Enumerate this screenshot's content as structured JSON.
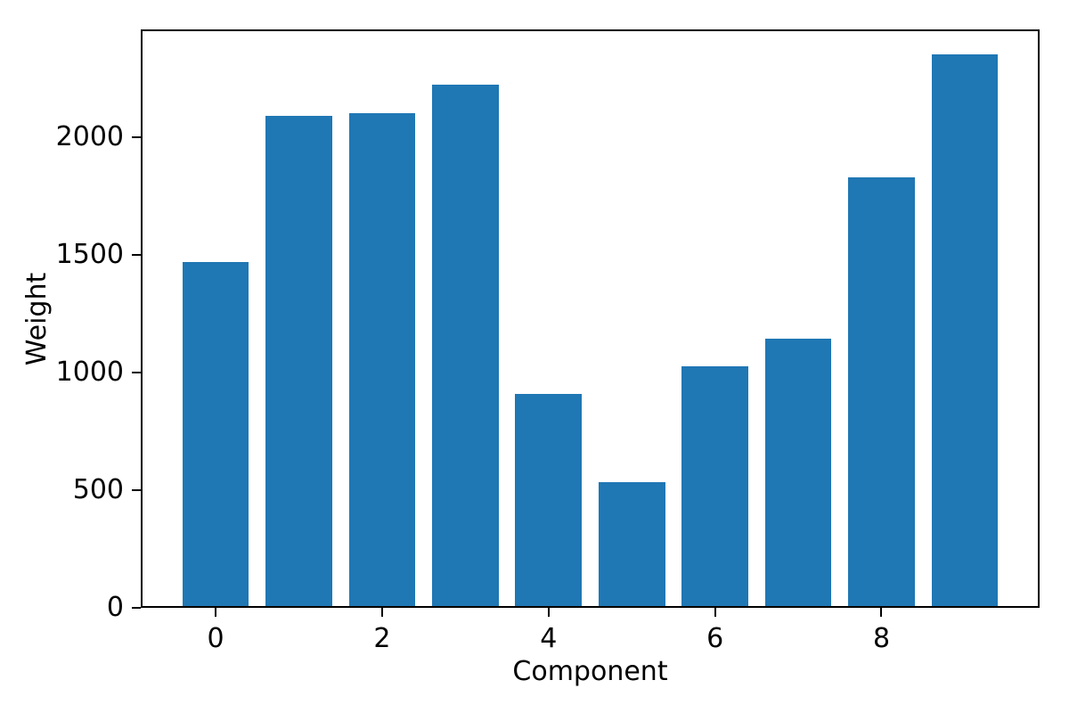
{
  "chart_data": {
    "type": "bar",
    "title": "",
    "xlabel": "Component",
    "ylabel": "Weight",
    "categories": [
      "0",
      "1",
      "2",
      "3",
      "4",
      "5",
      "6",
      "7",
      "8",
      "9"
    ],
    "values": [
      1470,
      2092,
      2101,
      2222,
      908,
      533,
      1027,
      1144,
      1831,
      2351
    ],
    "bar_color": "#1f77b4",
    "bar_width": 0.8,
    "x_ticks": [
      0,
      2,
      4,
      6,
      8
    ],
    "y_ticks": [
      0,
      500,
      1000,
      1500,
      2000
    ],
    "xlim": [
      -0.9,
      9.9
    ],
    "ylim": [
      0,
      2458
    ],
    "grid": false,
    "axis_color": "#000000",
    "text_color": "#000000"
  }
}
